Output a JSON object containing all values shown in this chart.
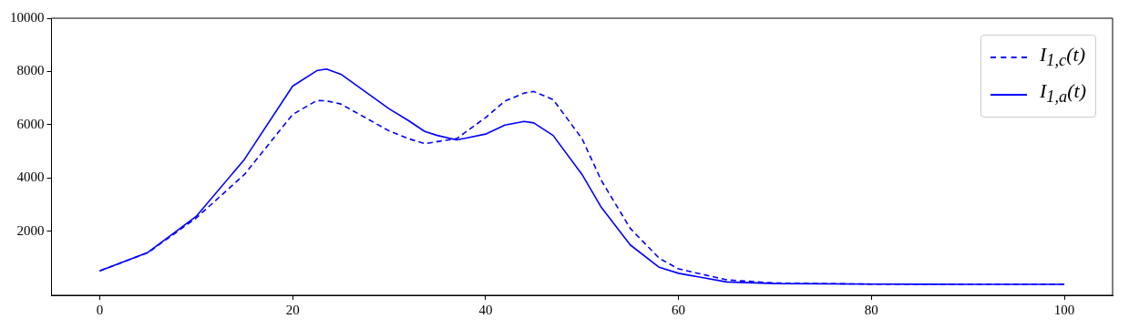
{
  "chart_data": {
    "type": "line",
    "x": [
      0,
      5,
      10,
      15,
      20,
      22.5,
      23.5,
      25,
      30,
      32,
      33.7,
      35,
      37,
      40,
      42,
      44,
      45,
      47,
      50,
      52,
      55,
      58,
      60,
      65,
      70,
      80,
      90,
      100
    ],
    "series": [
      {
        "name": "I$_{1,c}$(t)",
        "color": "#0000ff",
        "line_style": "dashed",
        "values": [
          516,
          1200,
          2500,
          4135,
          6385,
          6910,
          6900,
          6780,
          5770,
          5480,
          5290,
          5370,
          5480,
          6270,
          6890,
          7190,
          7250,
          6945,
          5480,
          3910,
          2110,
          990,
          590,
          180,
          60,
          20,
          10,
          10
        ]
      },
      {
        "name": "I$_{1,a}$(t)",
        "color": "#0000ff",
        "line_style": "solid",
        "values": [
          516,
          1211,
          2560,
          4700,
          7450,
          8030,
          8090,
          7900,
          6600,
          6160,
          5750,
          5600,
          5430,
          5650,
          5990,
          6125,
          6070,
          5600,
          4135,
          2900,
          1490,
          650,
          425,
          100,
          40,
          20,
          10,
          10
        ]
      }
    ],
    "xlim": [
      -5,
      105
    ],
    "xticks": [
      0,
      20,
      40,
      60,
      80,
      100
    ],
    "ylim": [
      -400,
      10000
    ],
    "yticks": [
      2000,
      4000,
      6000,
      8000,
      10000
    ],
    "grid": false,
    "legend": "top right",
    "marker": "none"
  }
}
